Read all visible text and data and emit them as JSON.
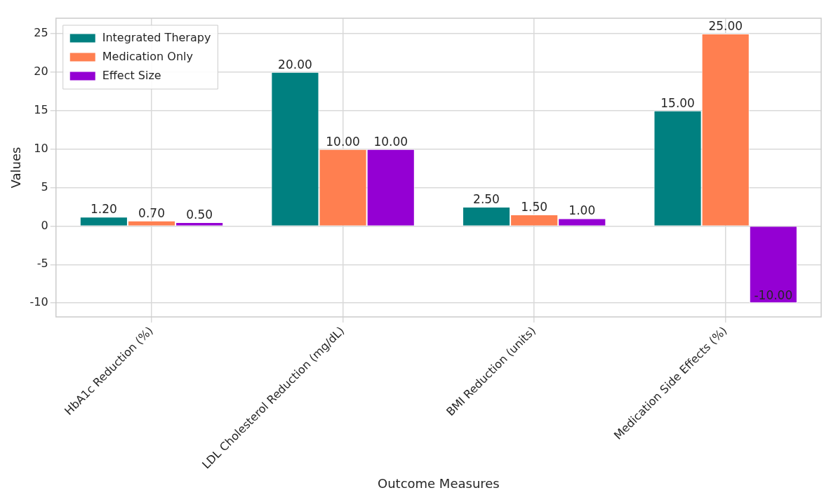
{
  "chart_data": {
    "type": "bar",
    "xlabel": "Outcome Measures",
    "ylabel": "Values",
    "categories": [
      "HbA1c Reduction (%)",
      "LDL Cholesterol Reduction (mg/dL)",
      "BMI Reduction (units)",
      "Medication Side Effects (%)"
    ],
    "series": [
      {
        "name": "Integrated Therapy",
        "color": "#008080",
        "values": [
          1.2,
          20,
          2.5,
          15
        ],
        "value_labels": [
          "1.20",
          "20.00",
          "2.50",
          "15.00"
        ]
      },
      {
        "name": "Medication Only",
        "color": "#ff7f50",
        "values": [
          0.7,
          10,
          1.5,
          25
        ],
        "value_labels": [
          "0.70",
          "10.00",
          "1.50",
          "25.00"
        ]
      },
      {
        "name": "Effect Size",
        "color": "#9400d3",
        "values": [
          0.5,
          10,
          1,
          -10
        ],
        "value_labels": [
          "0.50",
          "10.00",
          "1.00",
          "-10.00"
        ]
      }
    ],
    "ylim": [
      -11.8,
      27
    ],
    "yticks": [
      -10,
      -5,
      0,
      5,
      10,
      15,
      20,
      25
    ],
    "grid": true,
    "legend": "top left"
  }
}
